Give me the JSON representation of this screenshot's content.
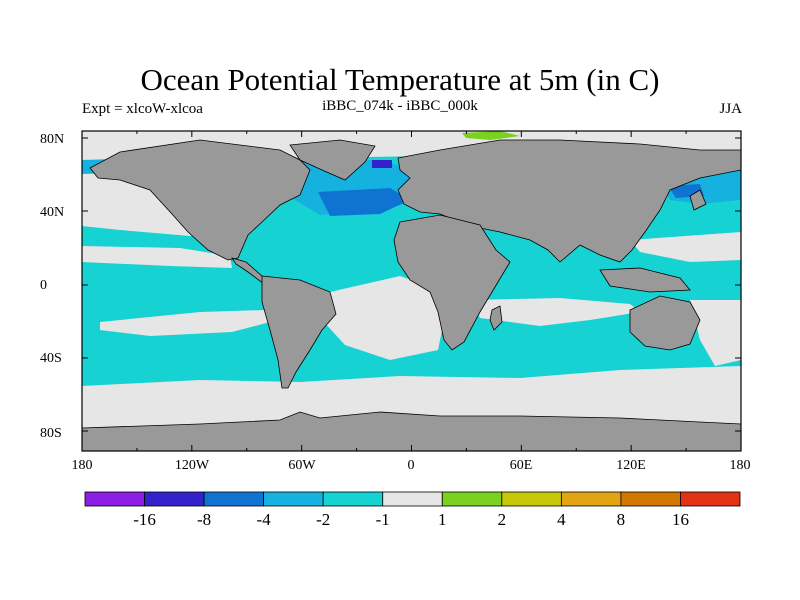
{
  "title": "Ocean Potential Temperature at 5m (in C)",
  "subtitle": "iBBC_074k - iBBC_000k",
  "left_label": "Expt = xlcoW-xlcoa",
  "right_label": "JJA",
  "lat_labels": [
    "80N",
    "40N",
    "0",
    "40S",
    "80S"
  ],
  "lon_labels": [
    "180",
    "120W",
    "60W",
    "0",
    "60E",
    "120E",
    "180"
  ],
  "colorbar": {
    "colors": [
      "#8c1ee6",
      "#3322cc",
      "#0f73d2",
      "#15b2e0",
      "#16d2d2",
      "#e6e6e6",
      "#7ad21e",
      "#c8c80a",
      "#e1a514",
      "#d27800",
      "#e13214"
    ],
    "labels": [
      "-16",
      "-8",
      "-4",
      "-2",
      "-1",
      "1",
      "2",
      "4",
      "8",
      "16"
    ]
  },
  "colors": {
    "land": "#999999",
    "ocean_default": "#16d2d2",
    "light_bands": "#e6e6e6",
    "mid_blue": "#15b2e0",
    "dark_blue": "#0f73d2",
    "darkest_blue": "#3322cc"
  }
}
